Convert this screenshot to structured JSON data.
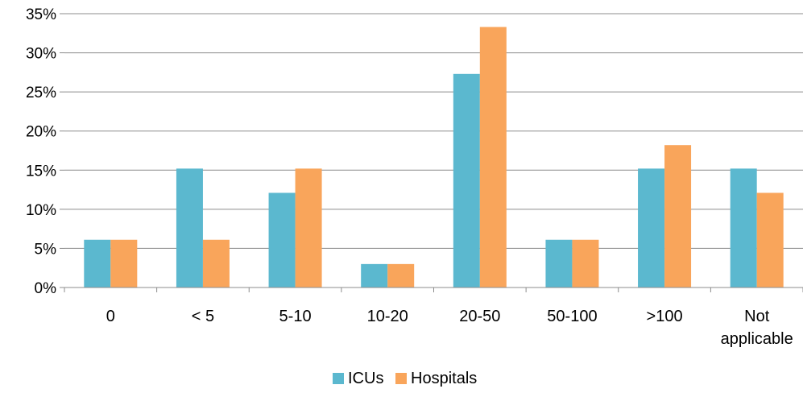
{
  "chart_data": {
    "type": "bar",
    "title": "",
    "xlabel": "",
    "ylabel": "",
    "categories": [
      [
        "0"
      ],
      [
        "< 5"
      ],
      [
        "5-10"
      ],
      [
        "10-20"
      ],
      [
        "20-50"
      ],
      [
        "50-100"
      ],
      [
        ">100"
      ],
      [
        "Not",
        "applicable"
      ]
    ],
    "series": [
      {
        "name": "ICUs",
        "color": "#5BB8CF",
        "values": [
          6.1,
          15.2,
          12.1,
          3.0,
          27.3,
          6.1,
          15.2,
          15.2
        ]
      },
      {
        "name": "Hospitals",
        "color": "#F9A55B",
        "values": [
          6.1,
          6.1,
          15.2,
          3.0,
          33.3,
          6.1,
          18.2,
          12.1
        ]
      }
    ],
    "ylim": [
      0,
      35
    ],
    "yticks": [
      0,
      5,
      10,
      15,
      20,
      25,
      30,
      35
    ],
    "ytick_labels": [
      "0%",
      "5%",
      "10%",
      "15%",
      "20%",
      "25%",
      "30%",
      "35%"
    ],
    "grid": true,
    "legend_position": "bottom"
  }
}
